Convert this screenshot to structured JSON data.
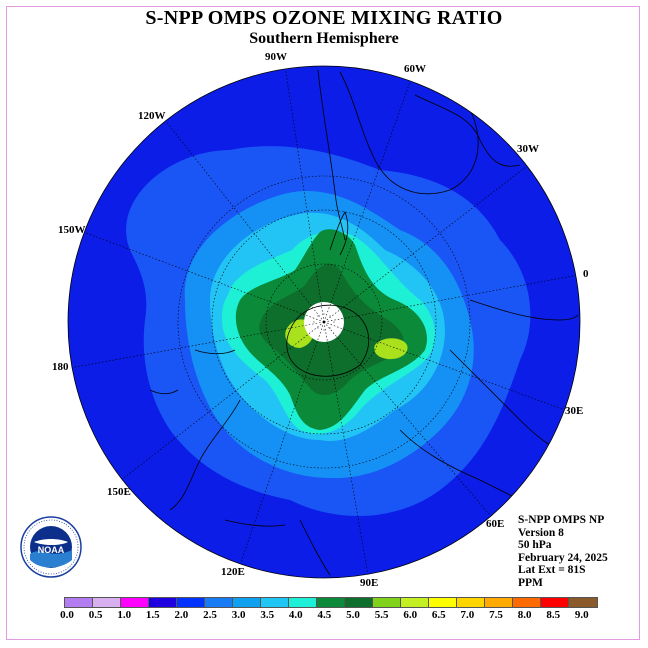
{
  "header": {
    "title": "S-NPP OMPS OZONE MIXING RATIO",
    "subtitle": "Southern Hemisphere"
  },
  "longitude_labels": [
    "0",
    "30W",
    "60W",
    "90W",
    "120W",
    "150W",
    "180",
    "150E",
    "120E",
    "90E",
    "60E",
    "30E"
  ],
  "info": {
    "line1": "S-NPP OMPS NP",
    "line2": "Version 8",
    "line3": "50 hPa",
    "line4": "February 24, 2025",
    "line5": "Lat Ext = 81S",
    "line6": "PPM"
  },
  "colorbar": {
    "ticks": [
      "0.0",
      "0.5",
      "1.0",
      "1.5",
      "2.0",
      "2.5",
      "3.0",
      "3.5",
      "4.0",
      "4.5",
      "5.0",
      "5.5",
      "6.0",
      "6.5",
      "7.0",
      "7.5",
      "8.0",
      "8.5",
      "9.0"
    ],
    "colors": [
      "#b37cf0",
      "#d8b0f0",
      "#ff00ff",
      "#1f00e0",
      "#0033ff",
      "#1a7cf5",
      "#10a0f0",
      "#20c7f5",
      "#1ef0d8",
      "#0b8a3a",
      "#0e6e2c",
      "#80d21a",
      "#c4f023",
      "#ffff00",
      "#ffd500",
      "#ffaa00",
      "#ff6a00",
      "#ff0000",
      "#8b5a2b"
    ]
  },
  "logo": {
    "text": "NOAA",
    "icon": "noaa-logo-icon"
  }
}
